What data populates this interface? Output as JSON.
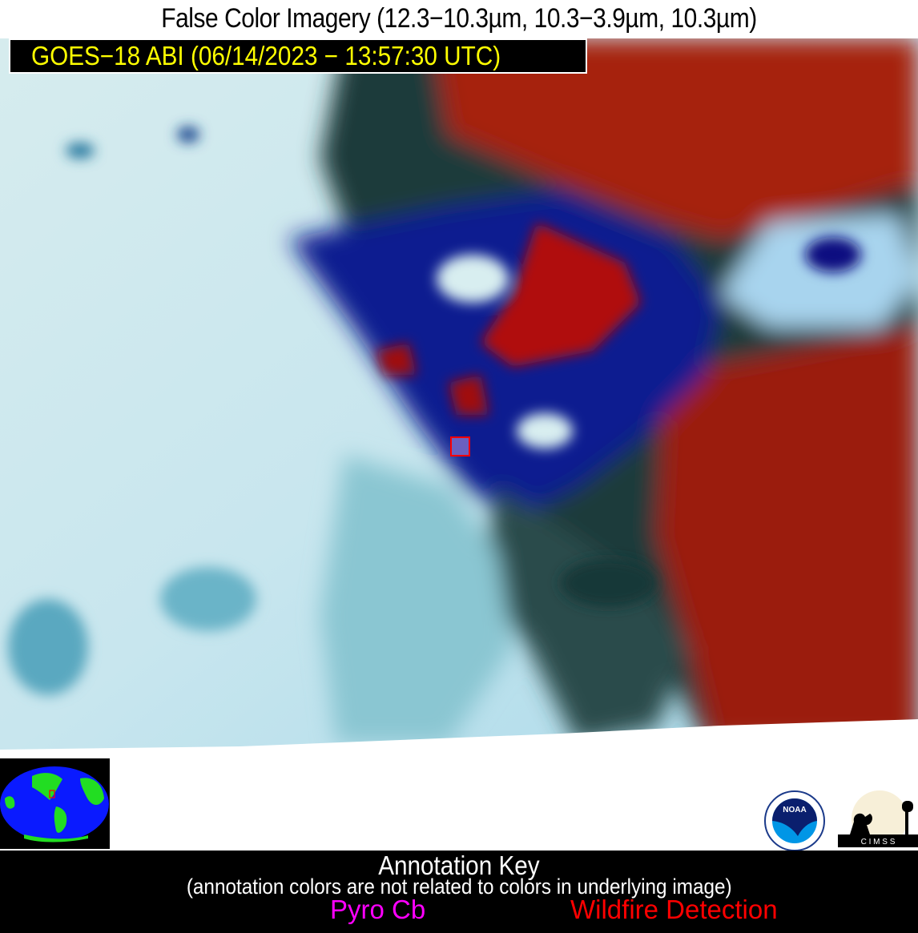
{
  "title": "False Color Imagery (12.3−10.3µm, 10.3−3.9µm, 10.3µm)",
  "satellite_label": "GOES−18 ABI (06/14/2023 − 13:57:30 UTC)",
  "annotation_key": {
    "title": "Annotation Key",
    "subtitle": "(annotation colors are not related to colors in underlying image)",
    "items": [
      {
        "label": "Pyro Cb",
        "color": "#ff00ff"
      },
      {
        "label": "Wildfire Detection",
        "color": "#ff0000"
      }
    ]
  },
  "logos": {
    "noaa": "NOAA",
    "cimss": "C I M S S"
  },
  "colors": {
    "cloud": "#c4e6ef",
    "warm_surface": "#a01a0a",
    "cold_cloud_top": "#0a1a8c",
    "detection_box": "#ff0000"
  }
}
